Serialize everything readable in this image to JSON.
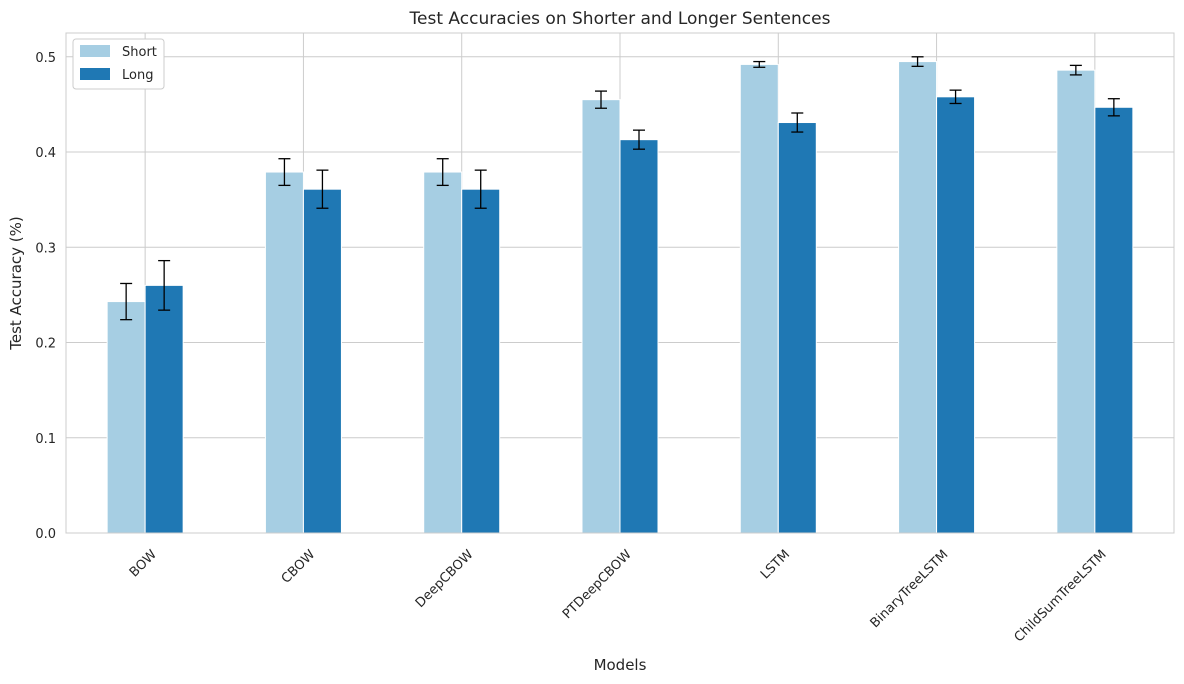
{
  "chart_data": {
    "type": "bar",
    "title": "Test Accuracies on Shorter and Longer Sentences",
    "xlabel": "Models",
    "ylabel": "Test Accuracy (%)",
    "ylim": [
      0,
      0.525
    ],
    "yticks": [
      0.0,
      0.1,
      0.2,
      0.3,
      0.4,
      0.5
    ],
    "ytick_labels": [
      "0.0",
      "0.1",
      "0.2",
      "0.3",
      "0.4",
      "0.5"
    ],
    "grid": true,
    "legend_position": "top-left",
    "categories": [
      "BOW",
      "CBOW",
      "DeepCBOW",
      "PTDeepCBOW",
      "LSTM",
      "BinaryTreeLSTM",
      "ChildSumTreeLSTM"
    ],
    "series": [
      {
        "name": "Short",
        "color": "#a6cee3",
        "values": [
          0.243,
          0.379,
          0.379,
          0.455,
          0.492,
          0.495,
          0.486
        ],
        "errors": [
          0.019,
          0.014,
          0.014,
          0.009,
          0.003,
          0.005,
          0.005
        ]
      },
      {
        "name": "Long",
        "color": "#1f78b4",
        "values": [
          0.26,
          0.361,
          0.361,
          0.413,
          0.431,
          0.458,
          0.447
        ],
        "errors": [
          0.026,
          0.02,
          0.02,
          0.01,
          0.01,
          0.007,
          0.009
        ]
      }
    ]
  }
}
